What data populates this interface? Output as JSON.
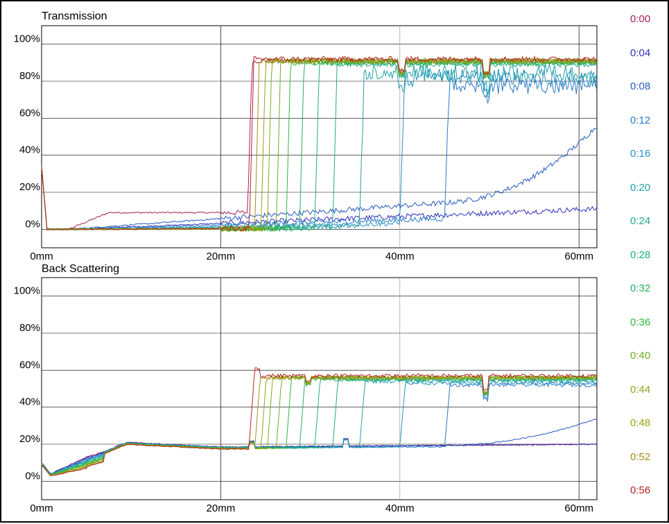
{
  "chart_data": [
    {
      "type": "line",
      "title": "Transmission",
      "xlabel": "",
      "ylabel": "",
      "xlim": [
        0,
        62
      ],
      "ylim": [
        -10,
        110
      ],
      "x_ticks": [
        "0mm",
        "20mm",
        "40mm",
        "60mm"
      ],
      "y_ticks": [
        "0%",
        "20%",
        "40%",
        "60%",
        "80%",
        "100%"
      ],
      "grid": true,
      "series": [
        {
          "name": "0:00",
          "rise_mm": 23.0,
          "baseline_end": 8,
          "plateau": 91
        },
        {
          "name": "0:04",
          "rise_mm": null,
          "baseline_end": 11,
          "plateau": 11
        },
        {
          "name": "0:08",
          "rise_mm": 62.0,
          "baseline_end": 20,
          "plateau": 56
        },
        {
          "name": "0:12",
          "rise_mm": 45.0,
          "baseline_end": 8,
          "plateau": 82
        },
        {
          "name": "0:16",
          "rise_mm": 40.0,
          "baseline_end": 5,
          "plateau": 86
        },
        {
          "name": "0:20",
          "rise_mm": 35.5,
          "baseline_end": 3,
          "plateau": 88
        },
        {
          "name": "0:24",
          "rise_mm": 32.5,
          "baseline_end": 2,
          "plateau": 89
        },
        {
          "name": "0:28",
          "rise_mm": 30.5,
          "baseline_end": 1,
          "plateau": 90
        },
        {
          "name": "0:32",
          "rise_mm": 28.8,
          "baseline_end": 1,
          "plateau": 90
        },
        {
          "name": "0:36",
          "rise_mm": 27.3,
          "baseline_end": 1,
          "plateau": 90
        },
        {
          "name": "0:40",
          "rise_mm": 26.2,
          "baseline_end": 1,
          "plateau": 91
        },
        {
          "name": "0:44",
          "rise_mm": 25.2,
          "baseline_end": 1,
          "plateau": 91
        },
        {
          "name": "0:48",
          "rise_mm": 24.5,
          "baseline_end": 1,
          "plateau": 91
        },
        {
          "name": "0:52",
          "rise_mm": 23.8,
          "baseline_end": 1,
          "plateau": 91
        },
        {
          "name": "0:56",
          "rise_mm": 23.2,
          "baseline_end": 1,
          "plateau": 92
        }
      ]
    },
    {
      "type": "line",
      "title": "Back Scattering",
      "xlabel": "",
      "ylabel": "",
      "xlim": [
        0,
        62
      ],
      "ylim": [
        -10,
        110
      ],
      "x_ticks": [
        "0mm",
        "20mm",
        "40mm",
        "60mm"
      ],
      "y_ticks": [
        "0%",
        "20%",
        "40%",
        "60%",
        "80%",
        "100%"
      ],
      "grid": true,
      "series": [
        {
          "name": "0:00",
          "rise_mm": null,
          "baseline_end": 20,
          "plateau": 20
        },
        {
          "name": "0:04",
          "rise_mm": null,
          "baseline_end": 20,
          "plateau": 20
        },
        {
          "name": "0:08",
          "rise_mm": 62.0,
          "baseline_end": 20,
          "plateau": 34
        },
        {
          "name": "0:12",
          "rise_mm": 45.0,
          "baseline_end": 19,
          "plateau": 52
        },
        {
          "name": "0:16",
          "rise_mm": 40.0,
          "baseline_end": 19,
          "plateau": 53
        },
        {
          "name": "0:20",
          "rise_mm": 35.5,
          "baseline_end": 19,
          "plateau": 54
        },
        {
          "name": "0:24",
          "rise_mm": 32.5,
          "baseline_end": 19,
          "plateau": 55
        },
        {
          "name": "0:28",
          "rise_mm": 30.5,
          "baseline_end": 19,
          "plateau": 55
        },
        {
          "name": "0:32",
          "rise_mm": 28.8,
          "baseline_end": 19,
          "plateau": 55
        },
        {
          "name": "0:36",
          "rise_mm": 27.3,
          "baseline_end": 19,
          "plateau": 56
        },
        {
          "name": "0:40",
          "rise_mm": 26.2,
          "baseline_end": 19,
          "plateau": 56
        },
        {
          "name": "0:44",
          "rise_mm": 25.2,
          "baseline_end": 19,
          "plateau": 56
        },
        {
          "name": "0:48",
          "rise_mm": 24.5,
          "baseline_end": 19,
          "plateau": 56
        },
        {
          "name": "0:52",
          "rise_mm": 23.8,
          "baseline_end": 19,
          "plateau": 56
        },
        {
          "name": "0:56",
          "rise_mm": 23.2,
          "baseline_end": 19,
          "plateau": 57
        }
      ]
    }
  ],
  "legend": {
    "items": [
      {
        "label": "0:00",
        "color": "#a0205a"
      },
      {
        "label": "0:04",
        "color": "#3030b8"
      },
      {
        "label": "0:08",
        "color": "#2858c0"
      },
      {
        "label": "0:12",
        "color": "#2878c8"
      },
      {
        "label": "0:16",
        "color": "#2890c0"
      },
      {
        "label": "0:20",
        "color": "#20a0a8"
      },
      {
        "label": "0:24",
        "color": "#20a890"
      },
      {
        "label": "0:28",
        "color": "#20b078"
      },
      {
        "label": "0:32",
        "color": "#20b060"
      },
      {
        "label": "0:36",
        "color": "#30b840"
      },
      {
        "label": "0:40",
        "color": "#68b020"
      },
      {
        "label": "0:44",
        "color": "#88a818"
      },
      {
        "label": "0:48",
        "color": "#98a010"
      },
      {
        "label": "0:52",
        "color": "#a09018"
      },
      {
        "label": "0:56",
        "color": "#b82020"
      }
    ]
  }
}
